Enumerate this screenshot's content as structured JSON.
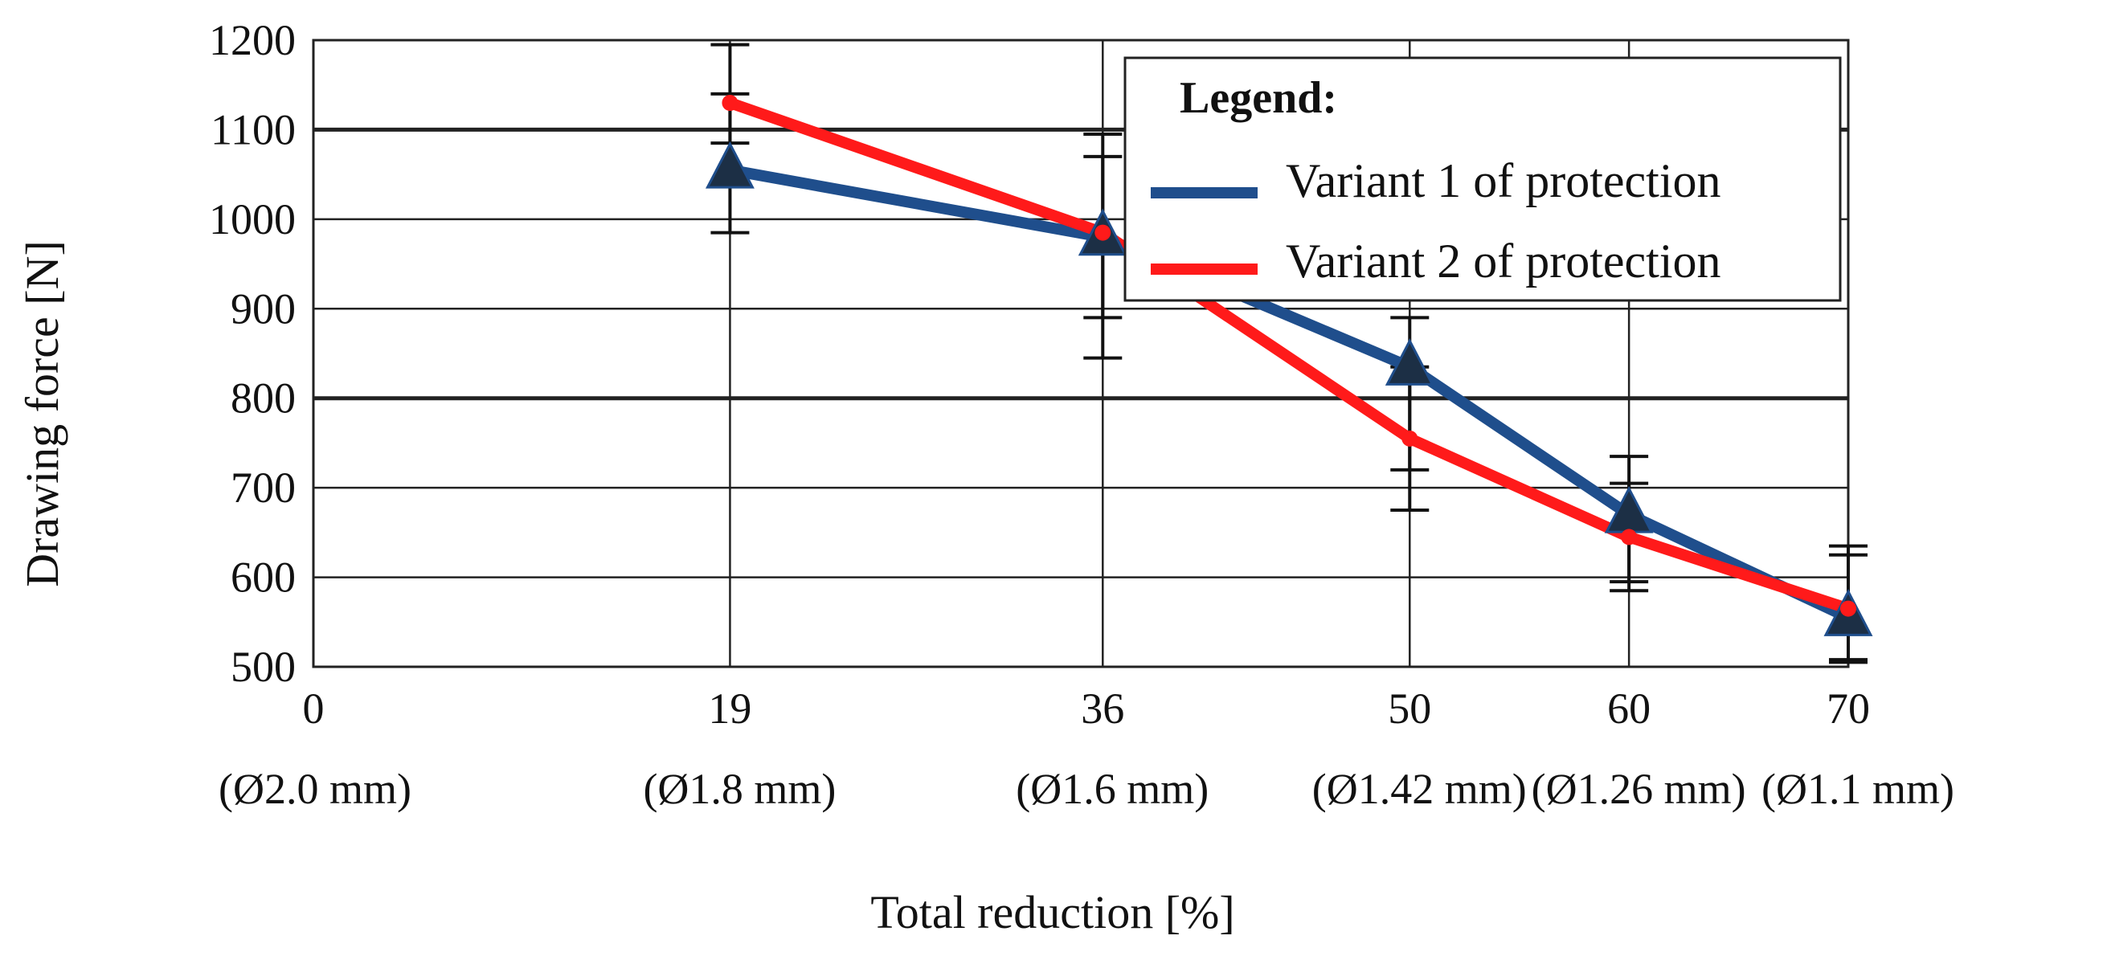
{
  "chart_data": {
    "type": "line",
    "title": "",
    "xlabel": "Total reduction [%]",
    "ylabel": "Drawing force [N]",
    "xlim": [
      0,
      70
    ],
    "ylim": [
      500,
      1200
    ],
    "x_ticks": [
      0,
      19,
      36,
      50,
      60,
      70
    ],
    "x_tick_labels": [
      "0",
      "19",
      "36",
      "50",
      "60",
      "70"
    ],
    "x_sublabels": [
      "(Ø2.0 mm)",
      "(Ø1.8 mm)",
      "(Ø1.6 mm)",
      "(Ø1.42 mm)",
      "(Ø1.26 mm)",
      "(Ø1.1 mm)"
    ],
    "y_ticks": [
      500,
      600,
      700,
      800,
      900,
      1000,
      1100,
      1200
    ],
    "y_tick_labels": [
      "500",
      "600",
      "700",
      "800",
      "900",
      "1000",
      "1100",
      "1200"
    ],
    "grid": true,
    "legend_title": "Legend:",
    "legend_position": "top-right",
    "series": [
      {
        "name": "Variant 1 of protection",
        "color": "#1f4e8c",
        "x": [
          19,
          36,
          50,
          60,
          70
        ],
        "values": [
          1055,
          980,
          835,
          670,
          555
        ],
        "err_low": [
          985,
          890,
          720,
          585,
          508
        ],
        "err_high": [
          1140,
          1070,
          890,
          735,
          635
        ]
      },
      {
        "name": "Variant 2 of protection",
        "color": "#ff1a1a",
        "x": [
          19,
          36,
          50,
          60,
          70
        ],
        "values": [
          1130,
          985,
          755,
          645,
          565
        ],
        "err_low": [
          1085,
          845,
          675,
          595,
          505
        ],
        "err_high": [
          1195,
          1095,
          835,
          705,
          625
        ]
      }
    ]
  }
}
